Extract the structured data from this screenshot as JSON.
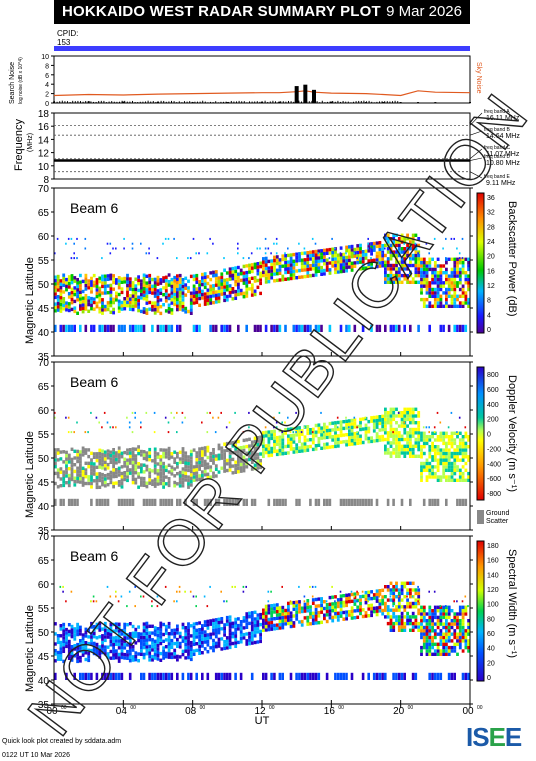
{
  "header": {
    "title": "HOKKAIDO WEST RADAR SUMMARY PLOT",
    "date": "9 Mar 2026",
    "cpid_label": "CPID:",
    "cpid_value": "153"
  },
  "footer": {
    "credit": "Quick look plot created by sddata.adm",
    "created": "0122 UT 10 Mar 2026",
    "logo": "ISEE"
  },
  "watermark": "NOT FOR PUBLICATION",
  "colors": {
    "cpid_bar": "#3d3dff",
    "noise_search": "#000000",
    "noise_sky": "#e05a20",
    "frequency_trace": "#000000",
    "ground_scatter": "#888888"
  },
  "chart_data": [
    {
      "type": "line",
      "ylabel": "Search Noise",
      "ylabel_sub": "log noise (dB x 10^4)",
      "right_label": "Sky Noise",
      "ylim": [
        0,
        10
      ],
      "yticks": [
        0,
        2,
        4,
        6,
        8,
        10
      ],
      "x": [
        0,
        2,
        4,
        6,
        8,
        10,
        12,
        13,
        14,
        14.5,
        15,
        16,
        18,
        19,
        20,
        21,
        22,
        24
      ],
      "series": [
        {
          "name": "Sky Noise",
          "values": [
            1.6,
            1.8,
            1.7,
            1.9,
            2.0,
            2.1,
            2.2,
            2.2,
            2.4,
            2.6,
            2.3,
            2.1,
            2.0,
            1.8,
            1.6,
            2.6,
            2.3,
            2.2
          ]
        },
        {
          "name": "Search Noise",
          "values": [
            0.3,
            0.4,
            0.3,
            0.3,
            0.2,
            0.2,
            0.3,
            0.3,
            3.6,
            3.9,
            2.8,
            0.3,
            0.2,
            0.2,
            0.2,
            0.2,
            0.2,
            0.2
          ]
        }
      ]
    },
    {
      "type": "line",
      "ylabel": "Frequency",
      "ylabel_sub": "(MHz)",
      "ylim": [
        8,
        18
      ],
      "yticks": [
        8,
        10,
        12,
        14,
        16,
        18
      ],
      "bands": [
        {
          "name": "freq band A",
          "value": "16.11 MHz",
          "mhz": 16.11
        },
        {
          "name": "freq band B",
          "value": "14.64 MHz",
          "mhz": 14.64
        },
        {
          "name": "freq band C",
          "value": "11.07 MHz",
          "mhz": 11.07
        },
        {
          "name": "freq band D",
          "value": "10.80 MHz",
          "mhz": 10.8
        },
        {
          "name": "freq band E",
          "value": "9.11 MHz",
          "mhz": 9.11
        }
      ],
      "trace_mhz": 10.8
    },
    {
      "type": "heatmap",
      "title": "Beam  6",
      "ylabel": "Magnetic Latitude",
      "colorbar_label": "Backscatter Power (dB)",
      "ylim": [
        35,
        70
      ],
      "yticks": [
        35,
        40,
        45,
        50,
        55,
        60,
        65,
        70
      ],
      "colorbar_ticks": [
        "0",
        "4",
        "8",
        "12",
        "16",
        "20",
        "24",
        "28",
        "32",
        "36"
      ],
      "colorbar_range": [
        0,
        36
      ]
    },
    {
      "type": "heatmap",
      "title": "Beam  6",
      "ylabel": "Magnetic Latitude",
      "colorbar_label": "Doppler Velocity (m s⁻¹)",
      "ylim": [
        35,
        70
      ],
      "yticks": [
        35,
        40,
        45,
        50,
        55,
        60,
        65,
        70
      ],
      "colorbar_ticks": [
        "800",
        "600",
        "400",
        "200",
        "0",
        "-200",
        "-400",
        "-600",
        "-800"
      ],
      "colorbar_range": [
        -800,
        800
      ],
      "ground_scatter_label": "Ground Scatter"
    },
    {
      "type": "heatmap",
      "title": "Beam  6",
      "ylabel": "Magnetic Latitude",
      "colorbar_label": "Spectral Width (m s⁻¹)",
      "ylim": [
        35,
        70
      ],
      "yticks": [
        35,
        40,
        45,
        50,
        55,
        60,
        65,
        70
      ],
      "colorbar_ticks": [
        "0",
        "20",
        "40",
        "60",
        "80",
        "100",
        "120",
        "140",
        "160",
        "180"
      ],
      "colorbar_range": [
        0,
        180
      ]
    }
  ],
  "xaxis": {
    "label": "UT",
    "range": [
      0,
      24
    ],
    "ticks": [
      {
        "main": "00",
        "sup": "00"
      },
      {
        "main": "04",
        "sup": "00"
      },
      {
        "main": "08",
        "sup": "00"
      },
      {
        "main": "12",
        "sup": "00"
      },
      {
        "main": "16",
        "sup": "00"
      },
      {
        "main": "20",
        "sup": "00"
      },
      {
        "main": "00",
        "sup": "00"
      }
    ]
  }
}
